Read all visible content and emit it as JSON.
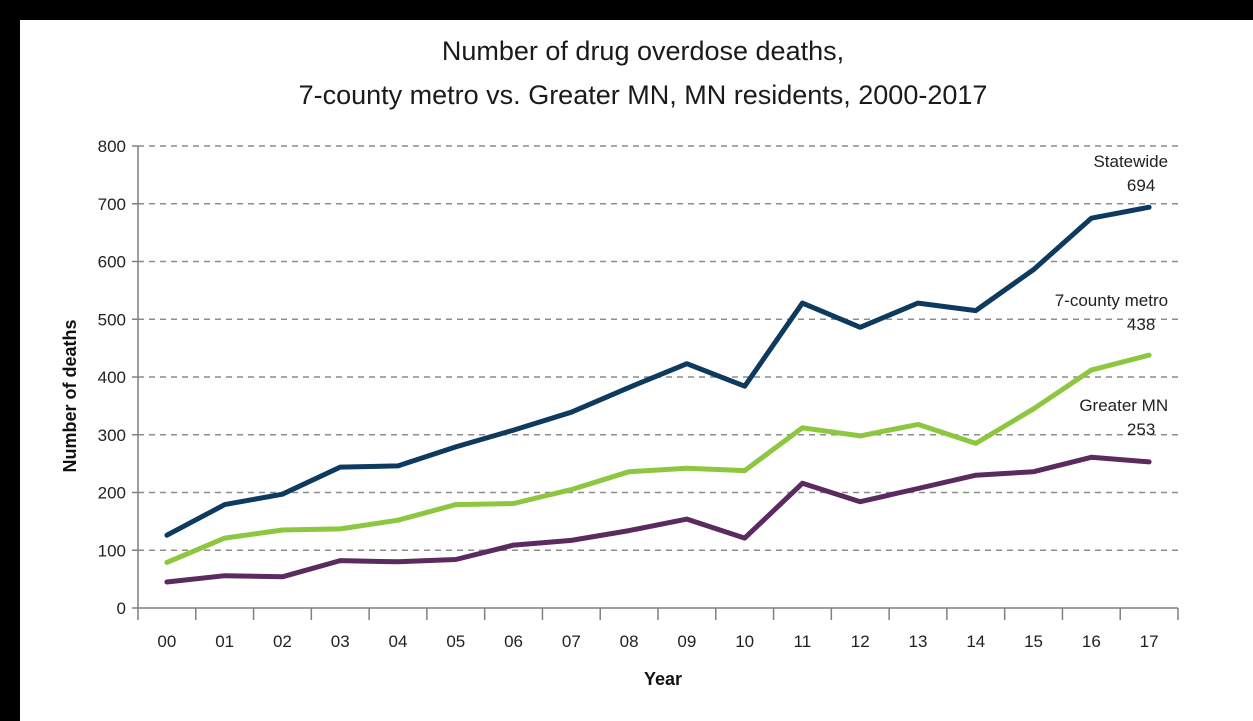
{
  "chart_data": {
    "type": "line",
    "title": [
      "Number of drug overdose deaths,",
      "7-county metro vs. Greater MN,  MN residents, 2000-2017"
    ],
    "xlabel": "Year",
    "ylabel": "Number of deaths",
    "ylim": [
      0,
      800
    ],
    "yticks": [
      "0",
      "100",
      "200",
      "300",
      "400",
      "500",
      "600",
      "700",
      "800"
    ],
    "grid": true,
    "categories": [
      "00",
      "01",
      "02",
      "03",
      "04",
      "05",
      "06",
      "07",
      "08",
      "09",
      "10",
      "11",
      "12",
      "13",
      "14",
      "15",
      "16",
      "17"
    ],
    "series": [
      {
        "name": "Statewide",
        "end_label": "694",
        "color": "#0e3a5f",
        "values": [
          126,
          179,
          197,
          244,
          246,
          279,
          308,
          339,
          382,
          423,
          384,
          528,
          486,
          528,
          515,
          586,
          675,
          694
        ]
      },
      {
        "name": "7-county metro",
        "end_label": "438",
        "color": "#8dc63f",
        "values": [
          79,
          121,
          135,
          137,
          152,
          179,
          181,
          205,
          236,
          242,
          238,
          312,
          298,
          318,
          285,
          345,
          412,
          438
        ]
      },
      {
        "name": "Greater MN",
        "end_label": "253",
        "color": "#5b2a5e",
        "values": [
          45,
          56,
          54,
          82,
          80,
          84,
          109,
          117,
          134,
          154,
          121,
          216,
          184,
          207,
          230,
          236,
          261,
          253
        ]
      }
    ]
  }
}
